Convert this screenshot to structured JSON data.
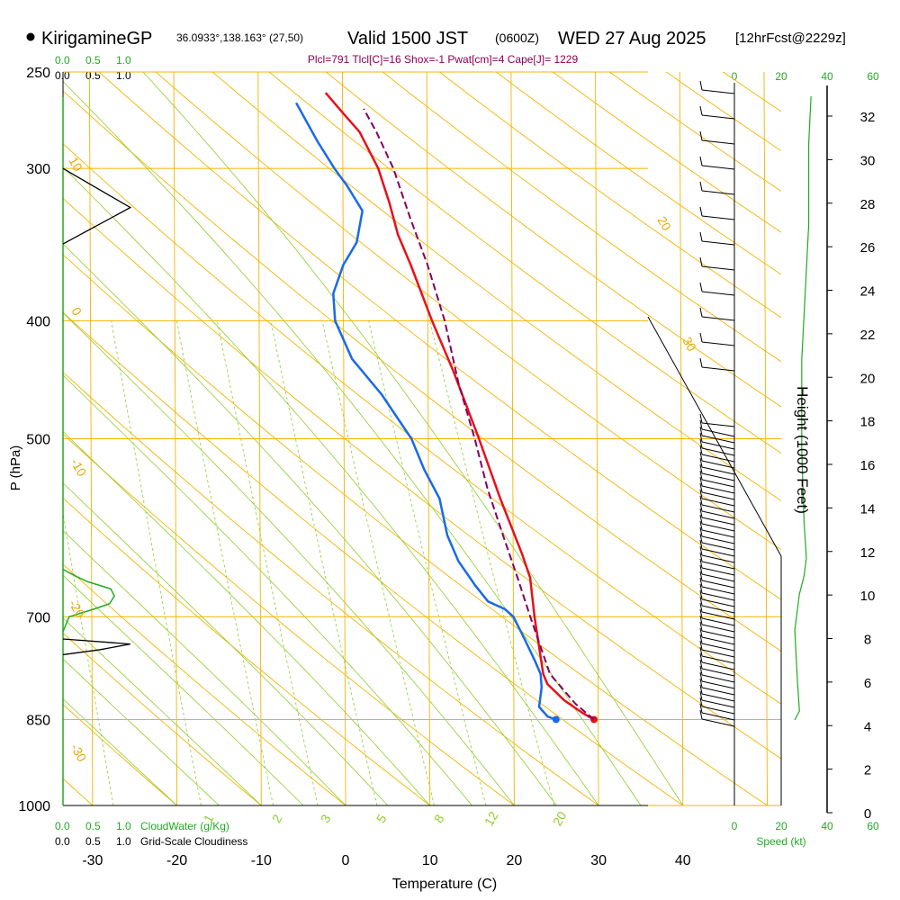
{
  "header": {
    "station": "KirigamineGP",
    "coords": "36.0933°,138.163° (27,50)",
    "valid": "Valid 1500 JST",
    "utc": "(0600Z)",
    "date": "WED 27 Aug 2025",
    "forecast": "[12hrFcst@2229z]",
    "indices": "Plcl=791 Tlcl[C]=16 Shox=-1 Pwat[cm]=4 Cape[J]= 1229"
  },
  "axes": {
    "ylabel": "P (hPa)",
    "xlabel": "Temperature (C)",
    "height_label": "Height (1000 Feet)",
    "speed_label": "Speed (kt)",
    "cloudwater_label": "CloudWater (g/Kg)",
    "cloudiness_label": "Grid-Scale Cloudiness",
    "cw_ticks": [
      "0.0",
      "0.5",
      "1.0"
    ],
    "cloud_ticks": [
      "0.0",
      "0.5",
      "1.0"
    ],
    "speed_ticks_top": [
      "0",
      "20",
      "40",
      "60"
    ],
    "speed_ticks_bottom": [
      "0",
      "20",
      "40",
      "60"
    ]
  },
  "chart_data": {
    "type": "line",
    "title": "Skew-T sounding KirigamineGP",
    "xlabel": "Temperature (C)",
    "ylabel": "P (hPa)",
    "xlim": [
      -35,
      45
    ],
    "pressure_ticks": [
      250,
      300,
      400,
      500,
      700,
      850,
      1000
    ],
    "temperature_ticks": [
      -30,
      -20,
      -10,
      0,
      10,
      20,
      30,
      40
    ],
    "height_ticks": [
      0,
      2,
      4,
      6,
      8,
      10,
      12,
      14,
      16,
      18,
      20,
      22,
      24,
      26,
      28,
      30,
      32
    ],
    "isotherm_labels": [
      "-30",
      "-20",
      "-10",
      "0",
      "10",
      "20",
      "30"
    ],
    "mixing_ratio_labels": [
      "1",
      "2",
      "3",
      "5",
      "8",
      "12",
      "20"
    ],
    "series": [
      {
        "name": "temperature",
        "color": "#e8101a",
        "points": [
          [
            29.5,
            850
          ],
          [
            28.2,
            840
          ],
          [
            26,
            820
          ],
          [
            24,
            795
          ],
          [
            23.5,
            780
          ],
          [
            22.5,
            700
          ],
          [
            22.3,
            680
          ],
          [
            22,
            650
          ],
          [
            21,
            620
          ],
          [
            18.5,
            560
          ],
          [
            16,
            500
          ],
          [
            13,
            440
          ],
          [
            10.5,
            400
          ],
          [
            8,
            360
          ],
          [
            6.5,
            340
          ],
          [
            5.5,
            320
          ],
          [
            4.2,
            300
          ],
          [
            2,
            280
          ],
          [
            0,
            270
          ],
          [
            -2,
            260
          ]
        ]
      },
      {
        "name": "dewpoint",
        "color": "#1a6ae8",
        "points": [
          [
            25,
            850
          ],
          [
            24,
            845
          ],
          [
            23,
            830
          ],
          [
            23.3,
            800
          ],
          [
            23.2,
            780
          ],
          [
            22.5,
            760
          ],
          [
            21.3,
            730
          ],
          [
            20,
            700
          ],
          [
            19,
            690
          ],
          [
            17,
            680
          ],
          [
            15.5,
            660
          ],
          [
            13.5,
            630
          ],
          [
            12.2,
            600
          ],
          [
            11.3,
            560
          ],
          [
            9.5,
            530
          ],
          [
            8,
            500
          ],
          [
            4.5,
            460
          ],
          [
            1,
            430
          ],
          [
            -1,
            400
          ],
          [
            -1.2,
            380
          ],
          [
            0,
            360
          ],
          [
            1.6,
            345
          ],
          [
            2.3,
            325
          ],
          [
            0.5,
            310
          ],
          [
            -1,
            300
          ],
          [
            -3,
            285
          ],
          [
            -5.5,
            265
          ]
        ]
      },
      {
        "name": "parcel",
        "color": "#800060",
        "points": [
          [
            29.5,
            850
          ],
          [
            27.3,
            825
          ],
          [
            24.3,
            780
          ],
          [
            22,
            700
          ],
          [
            20.5,
            650
          ],
          [
            18.8,
            600
          ],
          [
            17,
            550
          ],
          [
            15.5,
            500
          ],
          [
            13.6,
            450
          ],
          [
            12,
            400
          ],
          [
            10,
            360
          ],
          [
            8,
            330
          ],
          [
            6,
            300
          ],
          [
            4,
            280
          ],
          [
            2.5,
            268
          ]
        ]
      }
    ],
    "cloud_water": {
      "color": "#22aa22",
      "points": [
        [
          0,
          720
        ],
        [
          0.05,
          700
        ],
        [
          0.25,
          690
        ],
        [
          0.38,
          683
        ],
        [
          0.42,
          673
        ],
        [
          0.39,
          664
        ],
        [
          0.2,
          655
        ],
        [
          0.1,
          648
        ],
        [
          0,
          640
        ]
      ]
    },
    "cloudiness": {
      "color": "#000000",
      "points": [
        [
          0,
          300
        ],
        [
          0.55,
          323
        ],
        [
          0,
          346
        ],
        [
          0,
          730
        ],
        [
          0.55,
          737
        ],
        [
          0.3,
          745
        ],
        [
          0,
          752
        ]
      ]
    },
    "wind_speed": {
      "color": "#22aa22",
      "points": [
        [
          33,
          107
        ],
        [
          32,
          160
        ],
        [
          32,
          250
        ],
        [
          30,
          350
        ],
        [
          29,
          400
        ],
        [
          29,
          500
        ],
        [
          30,
          580
        ],
        [
          31,
          620
        ],
        [
          30,
          640
        ],
        [
          28,
          660
        ],
        [
          26,
          700
        ],
        [
          27,
          750
        ],
        [
          28,
          790
        ],
        [
          26,
          800
        ]
      ]
    }
  }
}
